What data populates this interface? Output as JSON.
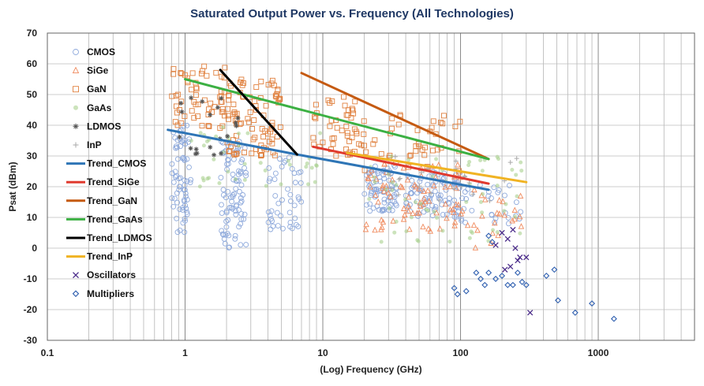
{
  "chart_data": {
    "type": "scatter",
    "title": "Saturated Output Power vs. Frequency (All Technologies)",
    "xlabel": "(Log) Frequency (GHz)",
    "ylabel": "Psat (dBm)",
    "xscale": "log",
    "xlim": [
      0.1,
      5000
    ],
    "ylim": [
      -30,
      70
    ],
    "x_ticks": [
      "0.1",
      "1",
      "10",
      "100",
      "1000"
    ],
    "y_ticks": [
      "70",
      "60",
      "50",
      "40",
      "30",
      "20",
      "10",
      "0",
      "-10",
      "-20",
      "-30"
    ],
    "grid": true,
    "legend_position": "left",
    "legend": [
      {
        "name": "CMOS",
        "marker": "circle",
        "color": "#8faadc"
      },
      {
        "name": "SiGe",
        "marker": "triangle",
        "color": "#f08a5d"
      },
      {
        "name": "GaN",
        "marker": "square",
        "color": "#e0803e"
      },
      {
        "name": "GaAs",
        "marker": "dot",
        "color": "#a9d18e"
      },
      {
        "name": "LDMOS",
        "marker": "star",
        "color": "#555555"
      },
      {
        "name": "InP",
        "marker": "plus",
        "color": "#aaaaaa"
      },
      {
        "name": "Trend_CMOS",
        "marker": "line",
        "color": "#2e75b6"
      },
      {
        "name": "Trend_SiGe",
        "marker": "line",
        "color": "#e03a2e"
      },
      {
        "name": "Trend_GaN",
        "marker": "line",
        "color": "#c55a11"
      },
      {
        "name": "Trend_GaAs",
        "marker": "line",
        "color": "#3cb043"
      },
      {
        "name": "Trend_LDMOS",
        "marker": "line",
        "color": "#000000"
      },
      {
        "name": "Trend_InP",
        "marker": "line",
        "color": "#f0b323"
      },
      {
        "name": "Oscillators",
        "marker": "x",
        "color": "#4b2c8a"
      },
      {
        "name": "Multipliers",
        "marker": "diamond",
        "color": "#3060b0"
      }
    ],
    "trends": [
      {
        "name": "Trend_CMOS",
        "color": "#2e75b6",
        "points": [
          [
            0.75,
            38.5
          ],
          [
            6.5,
            30.5
          ],
          [
            160,
            19
          ]
        ]
      },
      {
        "name": "Trend_SiGe",
        "color": "#e03a2e",
        "points": [
          [
            8.5,
            33
          ],
          [
            160,
            21
          ]
        ]
      },
      {
        "name": "Trend_GaN",
        "color": "#c55a11",
        "points": [
          [
            7,
            57
          ],
          [
            160,
            29
          ]
        ]
      },
      {
        "name": "Trend_GaAs",
        "color": "#3cb043",
        "points": [
          [
            1,
            55
          ],
          [
            160,
            29
          ]
        ]
      },
      {
        "name": "Trend_LDMOS",
        "color": "#000000",
        "points": [
          [
            1.8,
            58
          ],
          [
            6.5,
            30.5
          ]
        ]
      },
      {
        "name": "Trend_InP",
        "color": "#f0b323",
        "points": [
          [
            15,
            31
          ],
          [
            300,
            21.5
          ]
        ]
      }
    ],
    "clusters": [
      {
        "name": "CMOS",
        "color": "#8faadc",
        "marker": "circle",
        "groups": [
          {
            "xr": [
              0.8,
              1.1
            ],
            "yr": [
              5,
              40
            ],
            "n": 70
          },
          {
            "xr": [
              1.8,
              2.8
            ],
            "yr": [
              0,
              35
            ],
            "n": 90
          },
          {
            "xr": [
              4,
              7
            ],
            "yr": [
              5,
              30
            ],
            "n": 45
          },
          {
            "xr": [
              20,
              35
            ],
            "yr": [
              12,
              27
            ],
            "n": 80
          },
          {
            "xr": [
              40,
              100
            ],
            "yr": [
              10,
              25
            ],
            "n": 90
          },
          {
            "xr": [
              100,
              300
            ],
            "yr": [
              8,
              22
            ],
            "n": 30
          }
        ]
      },
      {
        "name": "SiGe",
        "color": "#f08a5d",
        "marker": "triangle",
        "groups": [
          {
            "xr": [
              20,
              100
            ],
            "yr": [
              5,
              28
            ],
            "n": 80
          },
          {
            "xr": [
              100,
              300
            ],
            "yr": [
              0,
              20
            ],
            "n": 25
          }
        ]
      },
      {
        "name": "GaN",
        "color": "#e0803e",
        "marker": "square",
        "groups": [
          {
            "xr": [
              0.8,
              2
            ],
            "yr": [
              38,
              60
            ],
            "n": 60
          },
          {
            "xr": [
              2,
              5
            ],
            "yr": [
              30,
              55
            ],
            "n": 90
          },
          {
            "xr": [
              8,
              20
            ],
            "yr": [
              30,
              50
            ],
            "n": 50
          },
          {
            "xr": [
              20,
              100
            ],
            "yr": [
              25,
              45
            ],
            "n": 40
          }
        ]
      },
      {
        "name": "GaAs",
        "color": "#a9d18e",
        "marker": "dot",
        "groups": [
          {
            "xr": [
              1,
              10
            ],
            "yr": [
              20,
              40
            ],
            "n": 40
          },
          {
            "xr": [
              20,
              300
            ],
            "yr": [
              2,
              30
            ],
            "n": 60
          }
        ]
      },
      {
        "name": "LDMOS",
        "color": "#555555",
        "marker": "star",
        "groups": [
          {
            "xr": [
              0.8,
              2.5
            ],
            "yr": [
              30,
              50
            ],
            "n": 20
          }
        ]
      },
      {
        "name": "InP",
        "color": "#aaaaaa",
        "marker": "plus",
        "groups": [
          {
            "xr": [
              30,
              300
            ],
            "yr": [
              15,
              30
            ],
            "n": 25
          }
        ]
      }
    ],
    "oscillators": [
      [
        200,
        5
      ],
      [
        220,
        3
      ],
      [
        250,
        0
      ],
      [
        270,
        -3
      ],
      [
        230,
        -6
      ],
      [
        210,
        -7
      ],
      [
        300,
        -3
      ],
      [
        320,
        -21
      ],
      [
        180,
        1
      ],
      [
        240,
        6
      ],
      [
        260,
        -4
      ]
    ],
    "multipliers": [
      [
        130,
        -8
      ],
      [
        140,
        -10
      ],
      [
        150,
        -12
      ],
      [
        160,
        -8
      ],
      [
        180,
        -10
      ],
      [
        200,
        -9
      ],
      [
        220,
        -12
      ],
      [
        240,
        -12
      ],
      [
        260,
        -8
      ],
      [
        280,
        -11
      ],
      [
        300,
        -12
      ],
      [
        95,
        -15
      ],
      [
        90,
        -13
      ],
      [
        110,
        -14
      ],
      [
        420,
        -9
      ],
      [
        480,
        -7
      ],
      [
        510,
        -17
      ],
      [
        680,
        -21
      ],
      [
        900,
        -18
      ],
      [
        1300,
        -23
      ],
      [
        160,
        4
      ],
      [
        170,
        2
      ]
    ]
  }
}
